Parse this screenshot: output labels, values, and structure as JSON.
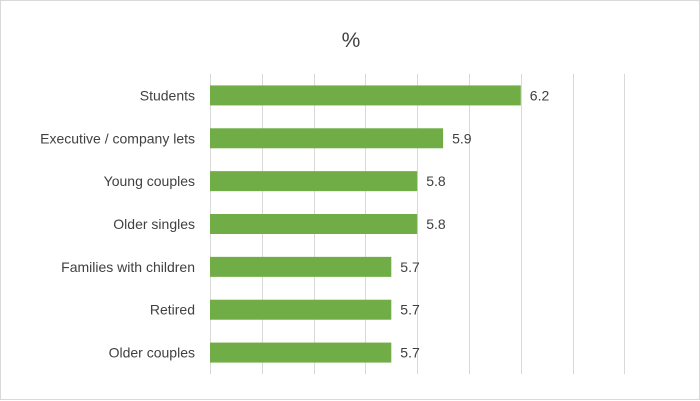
{
  "chart_data": {
    "type": "bar",
    "orientation": "horizontal",
    "title": "%",
    "xlabel": "",
    "ylabel": "",
    "categories": [
      "Students",
      "Executive / company lets",
      "Young couples",
      "Older singles",
      "Families with children",
      "Retired",
      "Older couples"
    ],
    "values": [
      6.2,
      5.9,
      5.8,
      5.8,
      5.7,
      5.7,
      5.7
    ],
    "xlim": [
      5.0,
      6.6
    ],
    "grid": "vertical",
    "legend": "none",
    "bar_color": "#70ad47"
  }
}
